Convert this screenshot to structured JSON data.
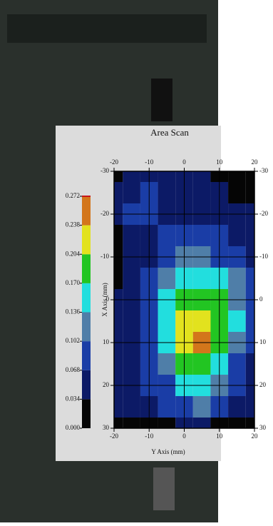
{
  "chart_data": {
    "type": "heatmap",
    "title": "Area Scan",
    "x_label": "Y Axis (mm)",
    "y_label": "X Axis (mm)",
    "x": [
      -20,
      -15,
      -10,
      -5,
      0,
      5,
      10,
      15,
      20
    ],
    "y": [
      -30,
      -25,
      -20,
      -15,
      -10,
      -5,
      0,
      5,
      10,
      15,
      20,
      25,
      30
    ],
    "z": [
      [
        0.02,
        0.04,
        0.05,
        0.05,
        0.05,
        0.04,
        0.03,
        0.02,
        0.02
      ],
      [
        0.04,
        0.06,
        0.07,
        0.05,
        0.05,
        0.05,
        0.05,
        0.03,
        0.02
      ],
      [
        0.05,
        0.07,
        0.08,
        0.06,
        0.06,
        0.06,
        0.06,
        0.05,
        0.04
      ],
      [
        0.03,
        0.05,
        0.04,
        0.07,
        0.08,
        0.08,
        0.07,
        0.06,
        0.05
      ],
      [
        0.02,
        0.04,
        0.06,
        0.09,
        0.11,
        0.11,
        0.1,
        0.08,
        0.06
      ],
      [
        0.03,
        0.05,
        0.08,
        0.12,
        0.15,
        0.16,
        0.14,
        0.11,
        0.07
      ],
      [
        0.05,
        0.06,
        0.09,
        0.14,
        0.19,
        0.2,
        0.18,
        0.13,
        0.08
      ],
      [
        0.05,
        0.06,
        0.09,
        0.15,
        0.22,
        0.23,
        0.2,
        0.14,
        0.08
      ],
      [
        0.04,
        0.06,
        0.09,
        0.15,
        0.22,
        0.24,
        0.19,
        0.13,
        0.07
      ],
      [
        0.05,
        0.06,
        0.08,
        0.13,
        0.18,
        0.19,
        0.15,
        0.1,
        0.06
      ],
      [
        0.05,
        0.06,
        0.07,
        0.1,
        0.14,
        0.15,
        0.12,
        0.08,
        0.05
      ],
      [
        0.04,
        0.05,
        0.06,
        0.08,
        0.1,
        0.11,
        0.09,
        0.06,
        0.04
      ],
      [
        0.02,
        0.03,
        0.03,
        0.03,
        0.04,
        0.04,
        0.03,
        0.03,
        0.02
      ]
    ],
    "xlim": [
      -20,
      20
    ],
    "xticks": [
      -20,
      -10,
      0,
      10,
      20
    ],
    "ylim": [
      -30,
      30
    ],
    "yticks": [
      -30,
      -20,
      -10,
      0,
      10,
      20,
      30
    ],
    "y_inverted": true,
    "grid": true,
    "colorbar_lim": [
      0,
      0.272
    ],
    "colorbar_ticks": [
      {
        "value": 0,
        "label": "0.000"
      },
      {
        "value": 0.034,
        "label": "0.034"
      },
      {
        "value": 0.068,
        "label": "0.068"
      },
      {
        "value": 0.102,
        "label": "0.102"
      },
      {
        "value": 0.136,
        "label": "0.136"
      },
      {
        "value": 0.17,
        "label": "0.170"
      },
      {
        "value": 0.204,
        "label": "0.204"
      },
      {
        "value": 0.238,
        "label": "0.238"
      },
      {
        "value": 0.272,
        "label": "0.272"
      }
    ],
    "colors": [
      "#050505",
      "#0c1a66",
      "#1a3da6",
      "#4f7ea8",
      "#22dede",
      "#22c522",
      "#e2e21e",
      "#d3761b"
    ],
    "top_color": "#c8161b"
  }
}
